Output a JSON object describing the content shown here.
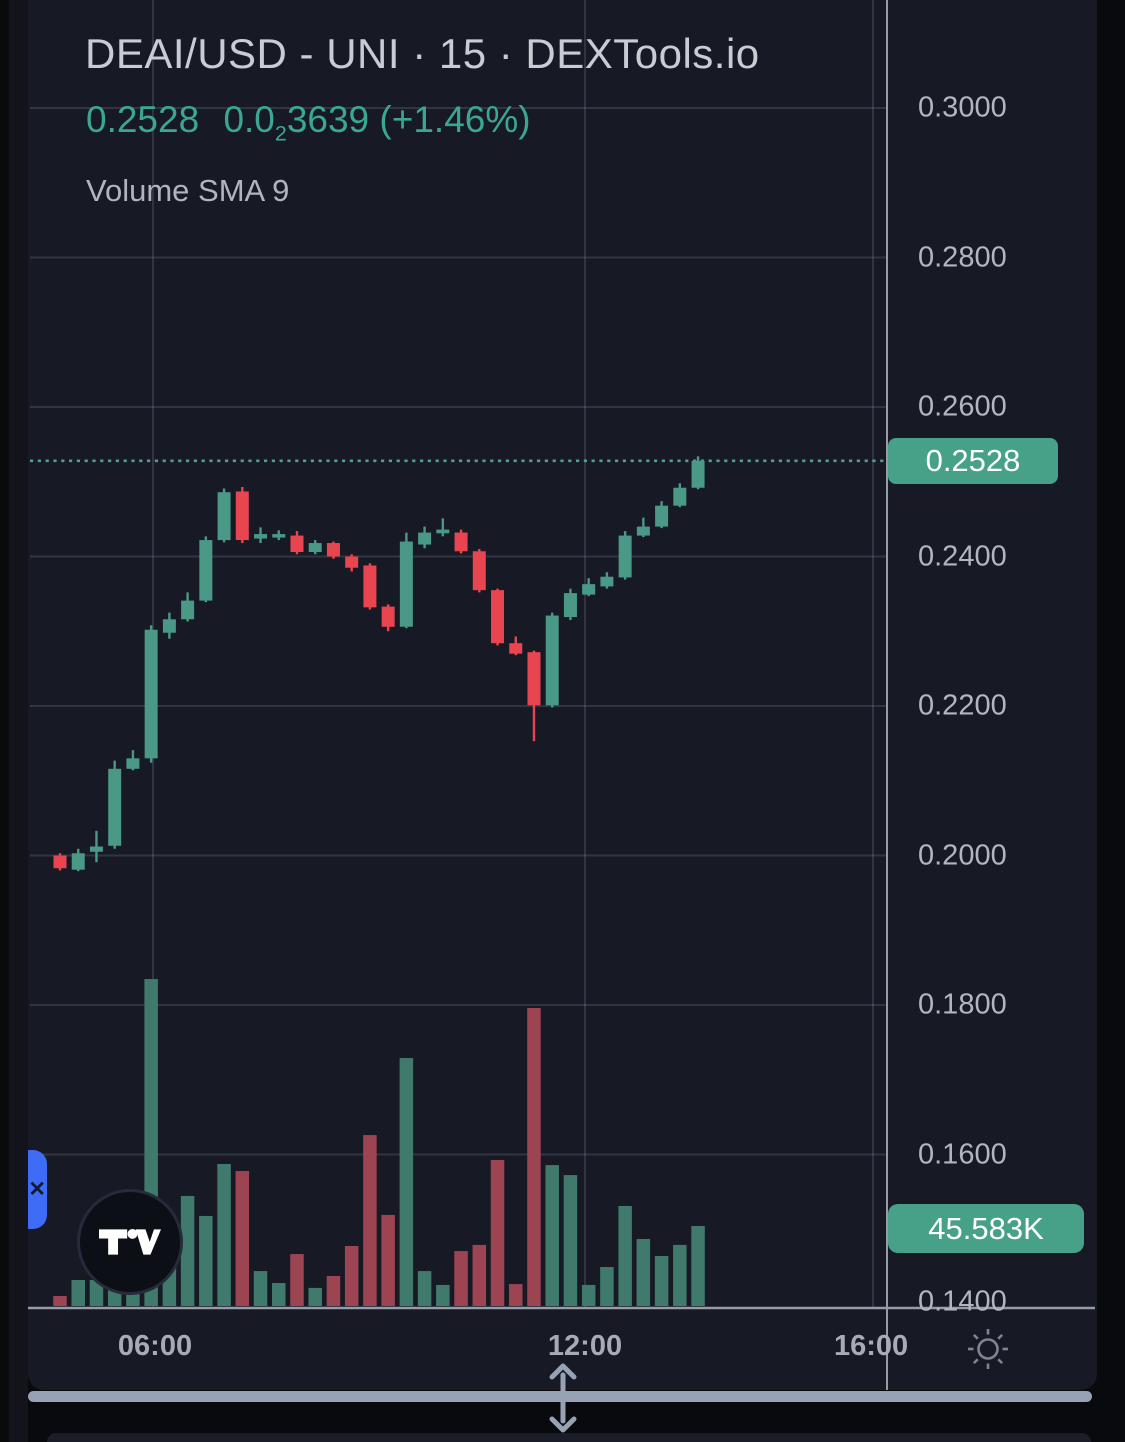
{
  "header": {
    "title": "DEAI/USD - UNI · 15 · DEXTools.io",
    "last_price": "0.2528",
    "change_abs_prefix": "0.0",
    "change_abs_subscript": "2",
    "change_abs_digits": "3639",
    "change_pct": "(+1.46%)",
    "indicator_label": "Volume SMA 9"
  },
  "y_axis": {
    "labels": [
      "0.3000",
      "0.2800",
      "0.2600",
      "0.2400",
      "0.2200",
      "0.2000",
      "0.1800",
      "0.1600",
      "0.1400"
    ],
    "price_badge": "0.2528",
    "volume_badge": "45.583K"
  },
  "x_axis": {
    "labels": [
      "06:00",
      "12:00",
      "16:00"
    ]
  },
  "icons": {
    "tv-logo": "tradingview-logo",
    "sun": "brightness-sun-icon",
    "close": "✕",
    "resize": "vertical-resize-arrows"
  },
  "colors": {
    "panel_bg": "#171a24",
    "candle_up": "#4a9886",
    "candle_down": "#e84550",
    "volume_up": "#3f7a6d",
    "volume_down": "#9d4452",
    "accent_teal": "#3aa793",
    "price_line": "#4ba195",
    "badge_bg": "#47a189",
    "grid": "rgba(170,178,198,0.18)",
    "separator": "#969ba7",
    "scrollbar": "#98a2b5"
  },
  "chart_data": {
    "type": "candlestick_with_volume",
    "symbol": "DEAI/USD",
    "interval": "15",
    "price_gridlines": [
      0.3,
      0.28,
      0.26,
      0.24,
      0.22,
      0.2,
      0.18,
      0.16,
      0.14
    ],
    "time_ticks": [
      "06:00",
      "12:00",
      "16:00"
    ],
    "current_price": 0.2528,
    "current_volume_k": 45.583,
    "legend": "Volume SMA 9",
    "grid": true,
    "candles": [
      {
        "o": 0.2,
        "h": 0.2003,
        "l": 0.198,
        "c": 0.1983,
        "v": 5.7
      },
      {
        "o": 0.1981,
        "h": 0.2009,
        "l": 0.1979,
        "c": 0.2003,
        "v": 14.8
      },
      {
        "o": 0.2005,
        "h": 0.2033,
        "l": 0.1991,
        "c": 0.2012,
        "v": 14.8
      },
      {
        "o": 0.2013,
        "h": 0.2127,
        "l": 0.2009,
        "c": 0.2116,
        "v": 16.0
      },
      {
        "o": 0.2116,
        "h": 0.2141,
        "l": 0.2114,
        "c": 0.213,
        "v": 16.0
      },
      {
        "o": 0.213,
        "h": 0.2308,
        "l": 0.2124,
        "c": 0.2302,
        "v": 186.3
      },
      {
        "o": 0.2298,
        "h": 0.2325,
        "l": 0.229,
        "c": 0.2316,
        "v": 26.2
      },
      {
        "o": 0.2316,
        "h": 0.2352,
        "l": 0.2313,
        "c": 0.2341,
        "v": 62.7
      },
      {
        "o": 0.2341,
        "h": 0.2427,
        "l": 0.2339,
        "c": 0.2422,
        "v": 51.3
      },
      {
        "o": 0.2422,
        "h": 0.2491,
        "l": 0.2419,
        "c": 0.2486,
        "v": 80.9
      },
      {
        "o": 0.2487,
        "h": 0.2493,
        "l": 0.2418,
        "c": 0.2422,
        "v": 76.9
      },
      {
        "o": 0.2424,
        "h": 0.2439,
        "l": 0.2418,
        "c": 0.243,
        "v": 19.9
      },
      {
        "o": 0.2426,
        "h": 0.2435,
        "l": 0.2422,
        "c": 0.243,
        "v": 13.1
      },
      {
        "o": 0.2428,
        "h": 0.2434,
        "l": 0.2403,
        "c": 0.2406,
        "v": 29.6
      },
      {
        "o": 0.2406,
        "h": 0.2422,
        "l": 0.2403,
        "c": 0.2418,
        "v": 10.3
      },
      {
        "o": 0.2418,
        "h": 0.242,
        "l": 0.2397,
        "c": 0.24,
        "v": 17.1
      },
      {
        "o": 0.24,
        "h": 0.2403,
        "l": 0.238,
        "c": 0.2385,
        "v": 34.2
      },
      {
        "o": 0.2388,
        "h": 0.2391,
        "l": 0.2329,
        "c": 0.2332,
        "v": 97.4
      },
      {
        "o": 0.2333,
        "h": 0.2336,
        "l": 0.23,
        "c": 0.2306,
        "v": 51.9
      },
      {
        "o": 0.2306,
        "h": 0.2432,
        "l": 0.2304,
        "c": 0.242,
        "v": 141.3
      },
      {
        "o": 0.2416,
        "h": 0.244,
        "l": 0.2411,
        "c": 0.2432,
        "v": 19.9
      },
      {
        "o": 0.2431,
        "h": 0.2451,
        "l": 0.2427,
        "c": 0.2436,
        "v": 12.0
      },
      {
        "o": 0.2432,
        "h": 0.2436,
        "l": 0.2404,
        "c": 0.2407,
        "v": 31.3
      },
      {
        "o": 0.2407,
        "h": 0.241,
        "l": 0.2352,
        "c": 0.2355,
        "v": 34.8
      },
      {
        "o": 0.2355,
        "h": 0.2357,
        "l": 0.2281,
        "c": 0.2284,
        "v": 83.2
      },
      {
        "o": 0.2284,
        "h": 0.2293,
        "l": 0.2268,
        "c": 0.227,
        "v": 12.5
      },
      {
        "o": 0.2272,
        "h": 0.2274,
        "l": 0.2153,
        "c": 0.2201,
        "v": 169.8
      },
      {
        "o": 0.2201,
        "h": 0.2325,
        "l": 0.2198,
        "c": 0.2321,
        "v": 80.3
      },
      {
        "o": 0.2319,
        "h": 0.2357,
        "l": 0.2315,
        "c": 0.2351,
        "v": 74.6
      },
      {
        "o": 0.2349,
        "h": 0.2371,
        "l": 0.2347,
        "c": 0.2363,
        "v": 12.0
      },
      {
        "o": 0.236,
        "h": 0.2379,
        "l": 0.2357,
        "c": 0.2373,
        "v": 22.2
      },
      {
        "o": 0.2372,
        "h": 0.2434,
        "l": 0.2369,
        "c": 0.2428,
        "v": 57.0
      },
      {
        "o": 0.2428,
        "h": 0.2452,
        "l": 0.2426,
        "c": 0.244,
        "v": 38.2
      },
      {
        "o": 0.244,
        "h": 0.2474,
        "l": 0.2438,
        "c": 0.2468,
        "v": 28.5
      },
      {
        "o": 0.2468,
        "h": 0.2498,
        "l": 0.2466,
        "c": 0.2492,
        "v": 34.8
      },
      {
        "o": 0.2492,
        "h": 0.2534,
        "l": 0.249,
        "c": 0.2528,
        "v": 45.583
      }
    ]
  }
}
